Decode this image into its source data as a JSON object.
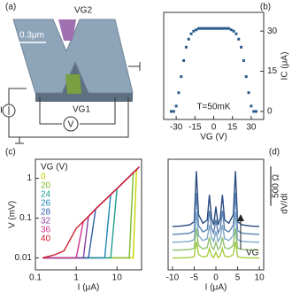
{
  "device": {
    "panel": "(a)",
    "gate_top": "VG2",
    "scale": "0.3μm",
    "gate_bottom": "VG1",
    "source": "I",
    "meter": "V"
  },
  "chart_data": [
    {
      "type": "scatter",
      "panel": "(b)",
      "annotation": "T=50mK",
      "x_label": "VG (V)",
      "y_label": "IC (μA)",
      "color": "#2a5a8a",
      "x": [
        -34,
        -32,
        -30,
        -28,
        -26,
        -24,
        -22,
        -20,
        -18,
        -16,
        -14,
        -12,
        -10,
        -8,
        -6,
        -4,
        -2,
        0,
        2,
        4,
        6,
        8,
        10,
        12,
        14,
        16,
        18,
        20,
        22,
        24,
        26,
        28,
        30,
        32,
        34
      ],
      "values": [
        0,
        0,
        2,
        7,
        13,
        19,
        24,
        27,
        29,
        30,
        30.5,
        31,
        31,
        31,
        31,
        31,
        31,
        31,
        31,
        31,
        31,
        31,
        31,
        31,
        30.5,
        30,
        29,
        27,
        24,
        19,
        13,
        7,
        2,
        0,
        0
      ],
      "xlim": [
        -40,
        40
      ],
      "xticks": [
        -30,
        -15,
        0,
        15,
        30
      ],
      "ylim": [
        -3,
        37
      ],
      "yticks": [
        0,
        15,
        30
      ]
    },
    {
      "type": "line",
      "panel": "(c)",
      "x_label": "I (μA)",
      "y_label": "V (mV)",
      "legend_title": "VG (V)",
      "log_x": true,
      "log_y": true,
      "x": [
        0.15,
        0.3,
        0.5,
        1,
        1.5,
        2,
        3,
        5,
        7,
        10,
        15,
        20,
        25,
        30,
        35
      ],
      "series": [
        {
          "name": "0",
          "color": "#c8d400",
          "values": [
            0.01,
            0.01,
            0.01,
            0.01,
            0.01,
            0.01,
            0.01,
            0.01,
            0.01,
            0.01,
            0.01,
            0.01,
            0.01,
            1.65,
            1.93
          ]
        },
        {
          "name": "20",
          "color": "#7dbb2a",
          "values": [
            0.01,
            0.01,
            0.01,
            0.01,
            0.01,
            0.01,
            0.01,
            0.01,
            0.01,
            0.01,
            0.01,
            0.01,
            1.38,
            1.65,
            1.93
          ]
        },
        {
          "name": "24",
          "color": "#1f9e8e",
          "values": [
            0.01,
            0.01,
            0.01,
            0.01,
            0.01,
            0.01,
            0.01,
            0.01,
            0.01,
            0.55,
            0.83,
            1.1,
            1.38,
            1.65,
            1.93
          ]
        },
        {
          "name": "26",
          "color": "#1f86b8",
          "values": [
            0.01,
            0.01,
            0.01,
            0.01,
            0.01,
            0.01,
            0.01,
            0.01,
            0.39,
            0.55,
            0.83,
            1.1,
            1.38,
            1.65,
            1.93
          ]
        },
        {
          "name": "28",
          "color": "#2f5fa8",
          "values": [
            0.01,
            0.01,
            0.01,
            0.01,
            0.01,
            0.01,
            0.17,
            0.28,
            0.39,
            0.55,
            0.83,
            1.1,
            1.38,
            1.65,
            1.93
          ]
        },
        {
          "name": "32",
          "color": "#8a3fa0",
          "values": [
            0.01,
            0.01,
            0.01,
            0.01,
            0.01,
            0.11,
            0.17,
            0.28,
            0.39,
            0.55,
            0.83,
            1.1,
            1.38,
            1.65,
            1.93
          ]
        },
        {
          "name": "36",
          "color": "#d0308a",
          "values": [
            0.01,
            0.01,
            0.01,
            0.01,
            0.083,
            0.11,
            0.17,
            0.28,
            0.39,
            0.55,
            0.83,
            1.1,
            1.38,
            1.65,
            1.93
          ]
        },
        {
          "name": "40",
          "color": "#d0202f",
          "values": [
            0.01,
            0.012,
            0.015,
            0.055,
            0.083,
            0.11,
            0.17,
            0.28,
            0.39,
            0.55,
            0.83,
            1.1,
            1.38,
            1.65,
            1.93
          ]
        }
      ],
      "xlim": [
        0.1,
        40
      ],
      "xticks": [
        0.1,
        1,
        10
      ],
      "ylim": [
        0.005,
        3
      ],
      "yticks": [
        0.01,
        0.1,
        1
      ]
    },
    {
      "type": "line",
      "panel": "(d)",
      "x_label": "I (μA)",
      "y_label": "dV/dI",
      "annotation": "VG",
      "scale_bar": {
        "value": 500,
        "label": "500 Ω"
      },
      "x": [
        -10,
        -8,
        -6,
        -5,
        -4.5,
        -4,
        -3,
        -2,
        -1.5,
        -1,
        -0.5,
        0,
        0.5,
        1,
        1.5,
        2,
        3,
        4,
        4.5,
        5,
        6,
        8,
        10
      ],
      "series": [
        {
          "color": "#2a4a80",
          "values": [
            400,
            405,
            420,
            460,
            1100,
            550,
            440,
            480,
            800,
            500,
            420,
            650,
            420,
            500,
            800,
            480,
            440,
            550,
            1100,
            460,
            420,
            405,
            400
          ]
        },
        {
          "color": "#5a80b0",
          "values": [
            300,
            304,
            315,
            345,
            825,
            413,
            330,
            360,
            600,
            375,
            315,
            488,
            315,
            375,
            600,
            360,
            330,
            413,
            825,
            345,
            315,
            304,
            300
          ]
        },
        {
          "color": "#80a8c8",
          "values": [
            200,
            203,
            211,
            233,
            585,
            283,
            222,
            244,
            420,
            255,
            211,
            338,
            211,
            255,
            420,
            244,
            222,
            283,
            585,
            233,
            211,
            203,
            200
          ]
        },
        {
          "color": "#8fc070",
          "values": [
            100,
            102,
            108,
            124,
            380,
            160,
            116,
            132,
            260,
            140,
            108,
            200,
            108,
            140,
            260,
            132,
            116,
            160,
            380,
            124,
            108,
            102,
            100
          ]
        },
        {
          "color": "#a8cc40",
          "values": [
            0,
            2,
            6,
            18,
            210,
            45,
            12,
            24,
            120,
            30,
            6,
            75,
            6,
            30,
            120,
            24,
            12,
            45,
            210,
            18,
            6,
            2,
            0
          ]
        }
      ],
      "xlim": [
        -11,
        11
      ],
      "xticks": [
        -10,
        -5,
        0,
        5,
        10
      ],
      "ylim": [
        -150,
        1250
      ]
    }
  ]
}
